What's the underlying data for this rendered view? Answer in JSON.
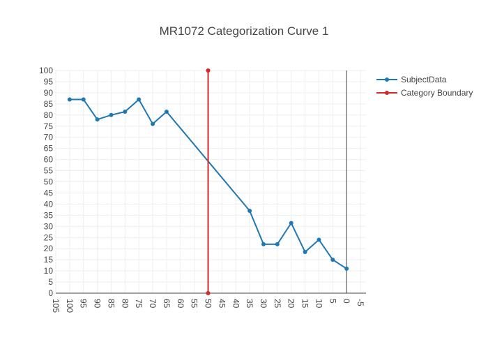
{
  "chart_data": {
    "type": "line",
    "title": "MR1072 Categorization Curve 1",
    "xlabel": "",
    "ylabel": "",
    "xlim": [
      105,
      -7
    ],
    "ylim": [
      0,
      100
    ],
    "x_reversed": true,
    "xticks": [
      105,
      100,
      95,
      90,
      85,
      80,
      75,
      70,
      65,
      60,
      55,
      50,
      45,
      40,
      35,
      30,
      25,
      20,
      15,
      10,
      5,
      0,
      -5
    ],
    "yticks": [
      0,
      5,
      10,
      15,
      20,
      25,
      30,
      35,
      40,
      45,
      50,
      55,
      60,
      65,
      70,
      75,
      80,
      85,
      90,
      95,
      100
    ],
    "grid": true,
    "legend": "top-right",
    "series": [
      {
        "name": "SubjectData",
        "color": "#1f77b4",
        "x": [
          100,
          95,
          90,
          85,
          80,
          75,
          70,
          65,
          35,
          30,
          25,
          20,
          15,
          10,
          5,
          0
        ],
        "y": [
          87,
          87,
          78,
          80,
          81.5,
          87,
          76,
          81.5,
          37,
          22,
          22,
          31.5,
          18.5,
          24,
          15,
          11
        ]
      },
      {
        "name": "Category Boundary",
        "color": "#d62728",
        "x": [
          50,
          50
        ],
        "y": [
          0,
          100
        ]
      }
    ]
  }
}
